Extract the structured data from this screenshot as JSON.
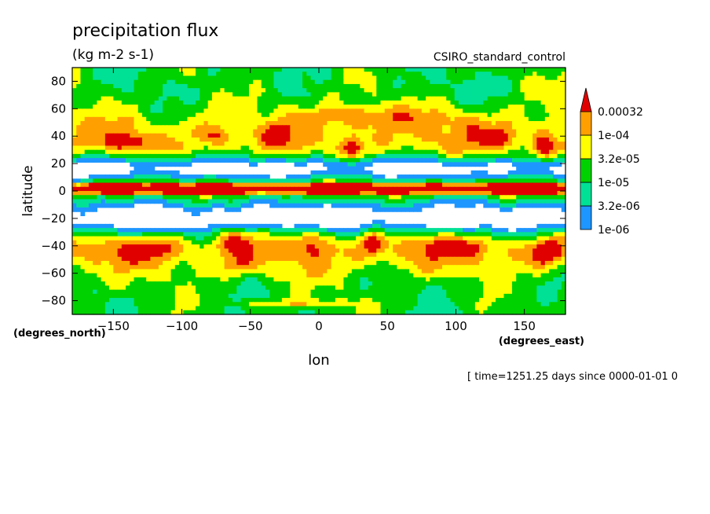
{
  "chart_data": {
    "type": "heatmap",
    "title": "precipitation flux",
    "subtitle": "(kg m-2 s-1)",
    "dataset": "CSIRO_standard_control",
    "xlabel": "lon",
    "ylabel": "latitude",
    "x_units": "(degrees_east)",
    "y_units": "(degrees_north)",
    "footer": "[ time=1251.25 days since 0000-01-01 0",
    "xlim": [
      -180,
      180
    ],
    "ylim": [
      -90,
      90
    ],
    "x_ticks": [
      -150,
      -100,
      -50,
      0,
      50,
      100,
      150
    ],
    "y_ticks": [
      80,
      60,
      40,
      20,
      0,
      -20,
      -40,
      -60,
      -80
    ],
    "x_tick_labels": [
      "−150",
      "−100",
      "−50",
      "0",
      "50",
      "100",
      "150"
    ],
    "y_tick_labels": [
      "80",
      "60",
      "40",
      "20",
      "0",
      "−20",
      "−40",
      "−60",
      "−80"
    ],
    "colorbar": {
      "levels": [
        "1e-06",
        "3.2e-06",
        "1e-05",
        "3.2e-05",
        "1e-04",
        "0.00032"
      ],
      "colors": [
        "#1e96ff",
        "#00e196",
        "#00d200",
        "#ffff00",
        "#ffa000",
        "#e10000"
      ],
      "extend": "max"
    },
    "features": [
      {
        "name": "ITCZ rain band",
        "lat": 2,
        "lon_range": [
          -180,
          180
        ],
        "level": "1e-04"
      },
      {
        "name": "subtropical dry zone north",
        "lat_range": [
          8,
          25
        ],
        "level": "below 1e-06"
      },
      {
        "name": "subtropical dry zone south",
        "lat_range": [
          -32,
          -8
        ],
        "level": "below 1e-06"
      },
      {
        "name": "storm track maxima",
        "level": "0.00032"
      }
    ]
  }
}
